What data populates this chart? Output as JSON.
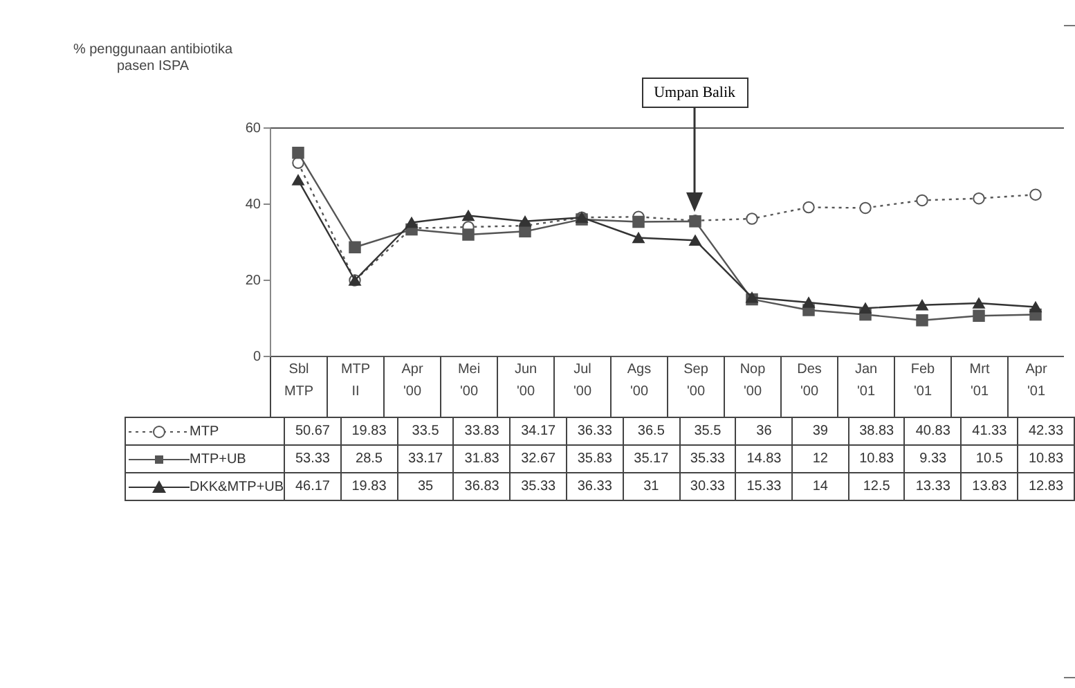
{
  "chart_data": {
    "type": "line",
    "ylabel": "% penggunaan antibiotika\npasen ISPA",
    "categories": [
      "Sbl MTP",
      "MTP II",
      "Apr '00",
      "Mei '00",
      "Jun '00",
      "Jul '00",
      "Ags '00",
      "Sep '00",
      "Nop '00",
      "Des '00",
      "Jan '01",
      "Feb '01",
      "Mrt '01",
      "Apr '01"
    ],
    "series": [
      {
        "name": "MTP",
        "color": "#555555",
        "marker": "circle",
        "line_style": "dotted",
        "values": [
          50.67,
          19.83,
          33.5,
          33.83,
          34.17,
          36.33,
          36.5,
          35.5,
          36,
          39,
          38.83,
          40.83,
          41.33,
          42.33
        ]
      },
      {
        "name": "MTP+UB",
        "color": "#555555",
        "marker": "square",
        "line_style": "solid",
        "values": [
          53.33,
          28.5,
          33.17,
          31.83,
          32.67,
          35.83,
          35.17,
          35.33,
          14.83,
          12,
          10.83,
          9.33,
          10.5,
          10.83
        ]
      },
      {
        "name": "DKK&MTP+UB",
        "color": "#333333",
        "marker": "triangle",
        "line_style": "solid",
        "values": [
          46.17,
          19.83,
          35,
          36.83,
          35.33,
          36.33,
          31,
          30.33,
          15.33,
          14,
          12.5,
          13.33,
          13.83,
          12.83
        ]
      }
    ],
    "legend": "left",
    "ylim": [
      0,
      60
    ],
    "yticks": [
      0,
      20,
      40,
      60
    ],
    "grid": false,
    "data_labels": true,
    "annotations": [
      "Umpan Balik"
    ]
  }
}
